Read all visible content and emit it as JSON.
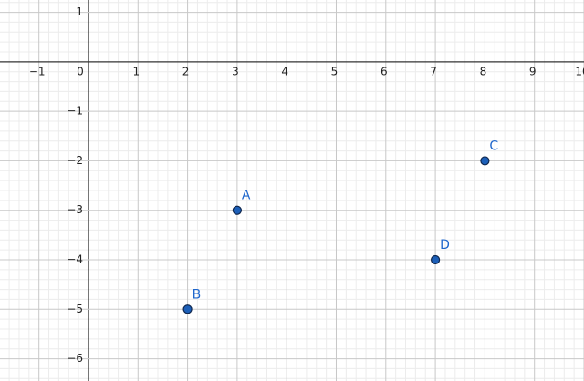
{
  "chart_data": {
    "type": "scatter",
    "x": [
      3,
      2,
      8,
      7
    ],
    "series": [
      {
        "color": "#1c5fb8",
        "values": [
          -3,
          -5,
          -2,
          -4
        ]
      }
    ],
    "point_labels": [
      "A",
      "B",
      "C",
      "D"
    ],
    "xlim": [
      -1.786,
      10.0
    ],
    "ylim": [
      -6.45,
      1.25
    ],
    "xticks": [
      {
        "value": -1,
        "label": "−1"
      },
      0,
      1,
      2,
      3,
      4,
      5,
      6,
      7,
      8,
      9,
      10
    ],
    "yticks": [
      1,
      {
        "value": -1,
        "label": "−1"
      },
      {
        "value": -2,
        "label": "−2"
      },
      {
        "value": -3,
        "label": "−3"
      },
      {
        "value": -4,
        "label": "−4"
      },
      {
        "value": -5,
        "label": "−5"
      },
      {
        "value": -6,
        "label": "−6"
      }
    ],
    "grid": true,
    "minor_grid_divisions": 5
  }
}
